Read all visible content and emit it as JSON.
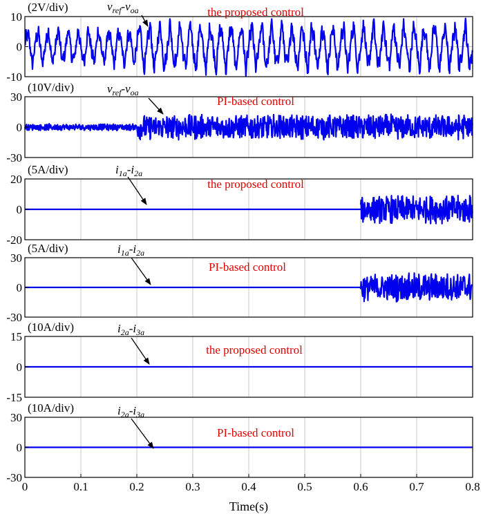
{
  "chart_data": {
    "type": "line",
    "x_axis": {
      "label": "Time(s)",
      "ticks": [
        0,
        0.1,
        0.2,
        0.3,
        0.4,
        0.5,
        0.6,
        0.7,
        0.8
      ],
      "tick_labels": [
        "0",
        "0.1",
        "0.2",
        "0.3",
        "0.4",
        "0.5",
        "0.6",
        "0.7",
        "0.8"
      ],
      "range": [
        0,
        0.8
      ]
    },
    "grid": true,
    "line_color": "#0000ee",
    "label_color": "#e00000",
    "panels": [
      {
        "scale": "(2V/div)",
        "ylim": [
          -10,
          10
        ],
        "yticks": [
          10,
          0,
          -10
        ],
        "ytick_labels": [
          "10",
          "0",
          "-10"
        ],
        "signal": {
          "a": "v",
          "a_sub": "ref",
          "b": "v",
          "b_sub": "oa"
        },
        "control_label": "the proposed control",
        "series": [
          {
            "t_start": 0,
            "t_end": 0.2,
            "kind": "periodic",
            "amplitude": 6.2,
            "offset": 0,
            "cycles_per_s": 55,
            "ripple": 1.8
          },
          {
            "t_start": 0.2,
            "t_end": 0.8,
            "kind": "periodic",
            "amplitude": 8.2,
            "offset": 0,
            "cycles_per_s": 55,
            "ripple": 2.0
          }
        ]
      },
      {
        "scale": "(10V/div)",
        "ylim": [
          -30,
          30
        ],
        "yticks": [
          30,
          0,
          -30
        ],
        "ytick_labels": [
          "30",
          "0",
          "-30"
        ],
        "signal": {
          "a": "v",
          "a_sub": "ref",
          "b": "v",
          "b_sub": "oa"
        },
        "control_label": "PI-based control",
        "series": [
          {
            "t_start": 0,
            "t_end": 0.2,
            "kind": "noise",
            "amplitude": 3.5,
            "offset": 0
          },
          {
            "t_start": 0.2,
            "t_end": 0.8,
            "kind": "noise_burst",
            "amplitude": 13,
            "offset": 0,
            "cycles_per_s": 50
          }
        ]
      },
      {
        "scale": "(5A/div)",
        "ylim": [
          -20,
          20
        ],
        "yticks": [
          20,
          0,
          -20
        ],
        "ytick_labels": [
          "20",
          "0",
          "-20"
        ],
        "signal": {
          "a": "i",
          "a_sub": "1a",
          "b": "i",
          "b_sub": "2a"
        },
        "control_label": "the proposed control",
        "series": [
          {
            "t_start": 0,
            "t_end": 0.6,
            "kind": "constant",
            "amplitude": 0,
            "offset": 0
          },
          {
            "t_start": 0.6,
            "t_end": 0.8,
            "kind": "noise_burst",
            "amplitude": 9.5,
            "offset": 0,
            "cycles_per_s": 50
          }
        ]
      },
      {
        "scale": "(5A/div)",
        "ylim": [
          -30,
          30
        ],
        "yticks": [
          30,
          0,
          -30
        ],
        "ytick_labels": [
          "30",
          "0",
          "-30"
        ],
        "signal": {
          "a": "i",
          "a_sub": "1a",
          "b": "i",
          "b_sub": "2a"
        },
        "control_label": "PI-based control",
        "series": [
          {
            "t_start": 0,
            "t_end": 0.6,
            "kind": "constant",
            "amplitude": 0,
            "offset": 0
          },
          {
            "t_start": 0.6,
            "t_end": 0.8,
            "kind": "noise_burst",
            "amplitude": 15,
            "offset": 0,
            "cycles_per_s": 50
          }
        ]
      },
      {
        "scale": "(10A/div)",
        "ylim": [
          -15,
          15
        ],
        "yticks": [
          15,
          0,
          -15
        ],
        "ytick_labels": [
          "15",
          "0",
          "-15"
        ],
        "signal": {
          "a": "i",
          "a_sub": "2a",
          "b": "i",
          "b_sub": "3a"
        },
        "control_label": "the proposed control",
        "series": [
          {
            "t_start": 0,
            "t_end": 0.8,
            "kind": "constant",
            "amplitude": 0,
            "offset": 0
          }
        ]
      },
      {
        "scale": "(10A/div)",
        "ylim": [
          -30,
          30
        ],
        "yticks": [
          30,
          0,
          -30
        ],
        "ytick_labels": [
          "30",
          "0",
          "-30"
        ],
        "signal": {
          "a": "i",
          "a_sub": "2a",
          "b": "i",
          "b_sub": "3a"
        },
        "control_label": "PI-based control",
        "series": [
          {
            "t_start": 0,
            "t_end": 0.8,
            "kind": "constant",
            "amplitude": 0,
            "offset": 0
          }
        ]
      }
    ]
  }
}
